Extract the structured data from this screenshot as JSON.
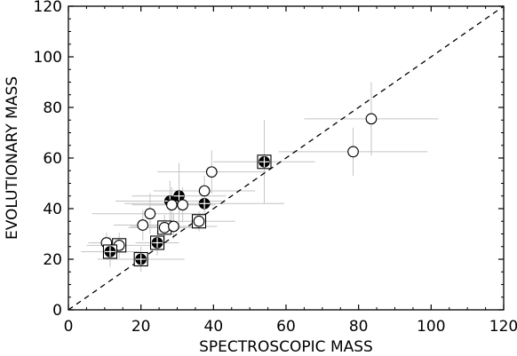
{
  "chart_data": {
    "type": "scatter",
    "xlabel": "SPECTROSCOPIC MASS",
    "ylabel": "EVOLUTIONARY MASS",
    "xlim": [
      0,
      120
    ],
    "ylim": [
      0,
      120
    ],
    "xticks": [
      "0",
      "20",
      "40",
      "60",
      "80",
      "100",
      "120"
    ],
    "yticks": [
      "0",
      "20",
      "40",
      "60",
      "80",
      "100",
      "120"
    ],
    "grid": false,
    "reference_line": {
      "style": "dashed",
      "x": [
        0,
        120
      ],
      "y": [
        0,
        120
      ]
    },
    "marker_styles": {
      "open": "open circle",
      "filled": "filled circle with cross",
      "boxed_open": "open circle in square",
      "boxed_filled": "filled circle with cross in square"
    },
    "points": [
      {
        "x": 83.5,
        "y": 75.5,
        "xerr": 18.5,
        "yerr": 14.5,
        "style": "open"
      },
      {
        "x": 78.5,
        "y": 62.5,
        "xerr": 20.5,
        "yerr": 9.5,
        "style": "open"
      },
      {
        "x": 54,
        "y": 58.5,
        "xerr": 14.0,
        "yerr": 16.5,
        "style": "boxed_filled"
      },
      {
        "x": 39.5,
        "y": 54.5,
        "xerr": 15.0,
        "yerr": 8.5,
        "style": "open"
      },
      {
        "x": 37.5,
        "y": 47.0,
        "xerr": 14.0,
        "yerr": 6.0,
        "style": "open"
      },
      {
        "x": 30.5,
        "y": 45.0,
        "xerr": 13.0,
        "yerr": 13.0,
        "style": "filled"
      },
      {
        "x": 28.0,
        "y": 43.0,
        "xerr": 15.0,
        "yerr": 8.0,
        "style": "filled"
      },
      {
        "x": 28.5,
        "y": 41.5,
        "xerr": 11.0,
        "yerr": 7.0,
        "style": "open"
      },
      {
        "x": 31.5,
        "y": 41.5,
        "xerr": 9.0,
        "yerr": 7.0,
        "style": "open"
      },
      {
        "x": 37.5,
        "y": 42.0,
        "xerr": 22.0,
        "yerr": 8.0,
        "style": "filled"
      },
      {
        "x": 22.5,
        "y": 38.0,
        "xerr": 16.0,
        "yerr": 8.0,
        "style": "open"
      },
      {
        "x": 20.5,
        "y": 33.5,
        "xerr": 8.0,
        "yerr": 6.0,
        "style": "open"
      },
      {
        "x": 26.5,
        "y": 32.5,
        "xerr": 10.0,
        "yerr": 5.0,
        "style": "boxed_open"
      },
      {
        "x": 29.0,
        "y": 33.0,
        "xerr": 12.0,
        "yerr": 5.0,
        "style": "open"
      },
      {
        "x": 36.0,
        "y": 35.0,
        "xerr": 10.0,
        "yerr": 4.0,
        "style": "boxed_open"
      },
      {
        "x": 24.5,
        "y": 26.5,
        "xerr": 6.0,
        "yerr": 5.0,
        "style": "boxed_filled"
      },
      {
        "x": 10.5,
        "y": 26.5,
        "xerr": 5.0,
        "yerr": 4.0,
        "style": "open"
      },
      {
        "x": 14.0,
        "y": 25.5,
        "xerr": 9.0,
        "yerr": 5.0,
        "style": "boxed_open"
      },
      {
        "x": 11.5,
        "y": 23.0,
        "xerr": 8.0,
        "yerr": 6.0,
        "style": "boxed_filled"
      },
      {
        "x": 20.0,
        "y": 20.0,
        "xerr": 12.0,
        "yerr": 5.0,
        "style": "boxed_filled"
      }
    ]
  }
}
